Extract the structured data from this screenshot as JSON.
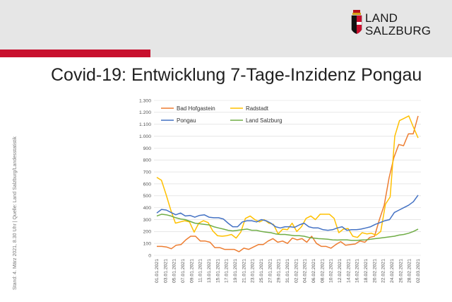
{
  "brand": {
    "line1": "LAND",
    "line2": "SALZBURG",
    "accent": "#c8102e"
  },
  "title": "Covid-19: Entwicklung 7-Tage-Inzidenz Pongau",
  "source_note": "Stand: 4. März  2021, 8.30 Uhr | Quelle: Land Salzburg/Landesstatistik",
  "chart_data": {
    "type": "line",
    "title": "",
    "xlabel": "",
    "ylabel": "",
    "ylim": [
      0,
      1300
    ],
    "yticks": [
      0,
      100,
      200,
      300,
      400,
      500,
      600,
      700,
      800,
      900,
      1000,
      1100,
      1200,
      1300
    ],
    "ytick_labels": [
      "0",
      "100",
      "200",
      "300",
      "400",
      "500",
      "600",
      "700",
      "800",
      "900",
      "1.000",
      "1.100",
      "1.200",
      "1.300"
    ],
    "grid": true,
    "legend_position": "top",
    "x_labels": [
      "01.01.2021",
      "03.01.2021",
      "05.01.2021",
      "07.01.2021",
      "09.01.2021",
      "11.01.2021",
      "13.01.2021",
      "15.01.2021",
      "17.01.2021",
      "19.01.2021",
      "21.01.2021",
      "23.01.2021",
      "25.01.2021",
      "27.01.2021",
      "29.01.2021",
      "31.01.2021",
      "02.02.2021",
      "04.02.2021",
      "06.02.2021",
      "08.02.2021",
      "10.02.2021",
      "12.02.2021",
      "14.02.2021",
      "16.02.2021",
      "18.02.2021",
      "20.02.2021",
      "22.02.2021",
      "24.02.2021",
      "26.02.2021",
      "28.02.2021",
      "02.03.2021"
    ],
    "series": [
      {
        "name": "Bad Hofgastein",
        "color": "#ed7d31",
        "values": [
          75,
          75,
          70,
          55,
          85,
          90,
          130,
          160,
          160,
          120,
          120,
          110,
          65,
          65,
          50,
          50,
          50,
          30,
          60,
          50,
          70,
          90,
          90,
          120,
          140,
          110,
          120,
          100,
          145,
          130,
          140,
          110,
          160,
          100,
          75,
          75,
          60,
          90,
          115,
          85,
          90,
          95,
          120,
          110,
          150,
          160,
          300,
          420,
          650,
          820,
          930,
          920,
          1020,
          1020,
          1170
        ]
      },
      {
        "name": "Radstadt",
        "color": "#ffc000",
        "values": [
          655,
          630,
          510,
          380,
          270,
          280,
          290,
          280,
          195,
          270,
          290,
          275,
          205,
          165,
          160,
          165,
          175,
          145,
          195,
          310,
          330,
          300,
          280,
          300,
          270,
          260,
          180,
          220,
          215,
          270,
          200,
          240,
          310,
          330,
          300,
          345,
          345,
          345,
          310,
          190,
          220,
          225,
          160,
          150,
          190,
          180,
          185,
          170,
          200,
          430,
          490,
          1000,
          1130,
          1150,
          1170,
          1075,
          985
        ]
      },
      {
        "name": "Pongau",
        "color": "#4472c4",
        "values": [
          355,
          385,
          380,
          360,
          340,
          355,
          330,
          335,
          320,
          335,
          340,
          320,
          315,
          315,
          305,
          270,
          240,
          240,
          280,
          290,
          290,
          280,
          300,
          290,
          270,
          240,
          230,
          240,
          240,
          235,
          255,
          270,
          240,
          230,
          230,
          215,
          210,
          215,
          230,
          240,
          210,
          215,
          215,
          220,
          230,
          240,
          260,
          275,
          290,
          300,
          360,
          380,
          400,
          420,
          450,
          505
        ]
      },
      {
        "name": "Land Salzburg",
        "color": "#70ad47",
        "values": [
          330,
          345,
          340,
          330,
          315,
          305,
          300,
          285,
          270,
          265,
          260,
          255,
          240,
          230,
          220,
          210,
          205,
          210,
          215,
          220,
          210,
          210,
          200,
          195,
          190,
          180,
          175,
          175,
          170,
          165,
          165,
          160,
          150,
          145,
          140,
          138,
          135,
          130,
          128,
          130,
          130,
          125,
          125,
          128,
          130,
          135,
          140,
          145,
          150,
          155,
          160,
          170,
          175,
          185,
          200,
          220
        ]
      }
    ]
  }
}
